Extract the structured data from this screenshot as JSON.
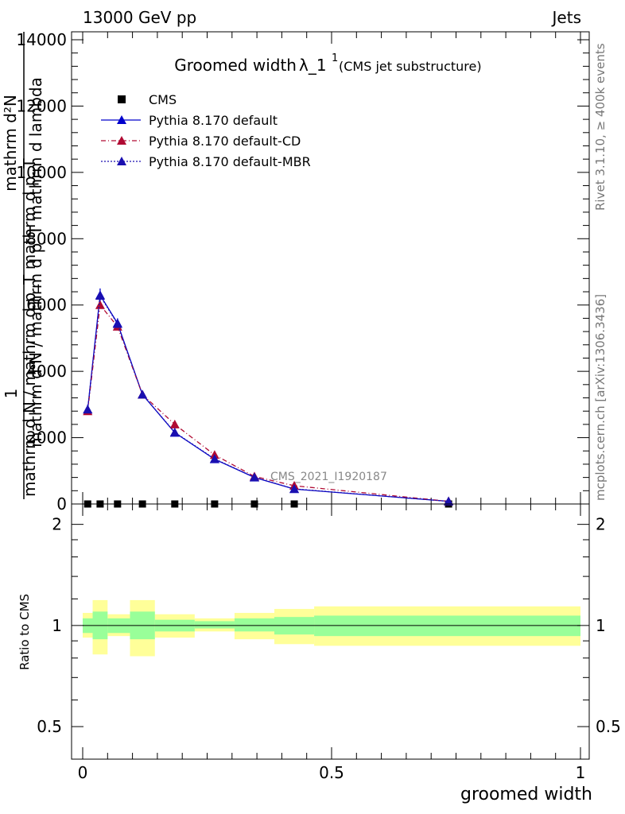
{
  "header": {
    "left": "13000 GeV pp",
    "right": "Jets"
  },
  "side_labels": {
    "rivet": "Rivet 3.1.10, ≥ 400k events",
    "mcplots": "mcplots.cern.ch [arXiv:1306.3436]"
  },
  "chart_data": [
    {
      "type": "line",
      "title": "Groomed width",
      "title_symbol": "λ_1",
      "title_sup": "1",
      "subtitle": "(CMS jet substructure)",
      "ylabel_lines": [
        "1",
        "mathrm d N / mathrm d p_T mathrm d p_T",
        "mathrm d N / mathrm d p_T mathrm d lambda",
        "mathrm d²N"
      ],
      "ylabel": "1 / (mathrm d N / mathrm d p_T) · mathrm d²N / (mathrm d p_T mathrm d lambda)",
      "analysis_label": "CMS_2021_I1920187",
      "xlim": [
        0,
        1
      ],
      "ylim": [
        0,
        14000
      ],
      "y_ticks": [
        0,
        2000,
        4000,
        6000,
        8000,
        10000,
        12000,
        14000
      ],
      "legend_position": "top-left",
      "series": [
        {
          "name": "CMS",
          "color": "#000000",
          "marker": "square",
          "x": [
            0.01,
            0.035,
            0.07,
            0.12,
            0.185,
            0.265,
            0.345,
            0.425,
            0.735
          ],
          "y": [
            0,
            0,
            0,
            0,
            0,
            0,
            0,
            0,
            0
          ]
        },
        {
          "name": "Pythia 8.170 default",
          "color": "#0000cc",
          "marker": "triangle",
          "dash": "",
          "x": [
            0.01,
            0.035,
            0.07,
            0.12,
            0.185,
            0.265,
            0.345,
            0.425,
            0.735
          ],
          "y": [
            2850,
            6300,
            5450,
            3300,
            2150,
            1350,
            800,
            450,
            80
          ],
          "err": [
            150,
            200,
            150,
            100,
            60,
            50,
            40,
            30,
            10
          ]
        },
        {
          "name": "Pythia 8.170 default-CD",
          "color": "#b00a33",
          "marker": "triangle",
          "dash": "6,3,1,3",
          "x": [
            0.01,
            0.035,
            0.07,
            0.12,
            0.185,
            0.265,
            0.345,
            0.425,
            0.735
          ],
          "y": [
            2800,
            6000,
            5350,
            3300,
            2400,
            1480,
            830,
            550,
            80
          ]
        },
        {
          "name": "Pythia 8.170 default-MBR",
          "color": "#1a0fb0",
          "marker": "triangle",
          "dash": "2,2",
          "x": [
            0.01,
            0.035,
            0.07,
            0.12,
            0.185,
            0.265,
            0.345,
            0.425,
            0.735
          ],
          "y": [
            2850,
            6280,
            5430,
            3300,
            2160,
            1360,
            805,
            455,
            80
          ]
        }
      ]
    },
    {
      "type": "area",
      "ylabel": "Ratio to CMS",
      "xlabel": "groomed width",
      "xlim": [
        0,
        1
      ],
      "ylim": [
        0.4,
        2.3
      ],
      "y_scale": "log",
      "y_ticks": [
        0.5,
        1,
        2
      ],
      "y_tick_labels": [
        "0.5",
        "1",
        "2"
      ],
      "x_ticks": [
        0,
        0.5,
        1
      ],
      "x_tick_labels": [
        "0",
        "0.5",
        "1"
      ],
      "band_colors": {
        "inner": "#99ff99",
        "outer": "#ffff99"
      },
      "bins": [
        {
          "lo": 0.0,
          "hi": 0.02,
          "inner": [
            0.95,
            1.05
          ],
          "outer": [
            0.92,
            1.09
          ]
        },
        {
          "lo": 0.02,
          "hi": 0.05,
          "inner": [
            0.91,
            1.1
          ],
          "outer": [
            0.82,
            1.19
          ]
        },
        {
          "lo": 0.05,
          "hi": 0.095,
          "inner": [
            0.95,
            1.05
          ],
          "outer": [
            0.93,
            1.08
          ]
        },
        {
          "lo": 0.095,
          "hi": 0.145,
          "inner": [
            0.91,
            1.1
          ],
          "outer": [
            0.81,
            1.19
          ]
        },
        {
          "lo": 0.145,
          "hi": 0.225,
          "inner": [
            0.96,
            1.04
          ],
          "outer": [
            0.92,
            1.08
          ]
        },
        {
          "lo": 0.225,
          "hi": 0.305,
          "inner": [
            0.98,
            1.03
          ],
          "outer": [
            0.96,
            1.05
          ]
        },
        {
          "lo": 0.305,
          "hi": 0.385,
          "inner": [
            0.96,
            1.05
          ],
          "outer": [
            0.91,
            1.09
          ]
        },
        {
          "lo": 0.385,
          "hi": 0.465,
          "inner": [
            0.94,
            1.06
          ],
          "outer": [
            0.88,
            1.12
          ]
        },
        {
          "lo": 0.465,
          "hi": 1.0,
          "inner": [
            0.93,
            1.07
          ],
          "outer": [
            0.87,
            1.14
          ]
        }
      ]
    }
  ]
}
